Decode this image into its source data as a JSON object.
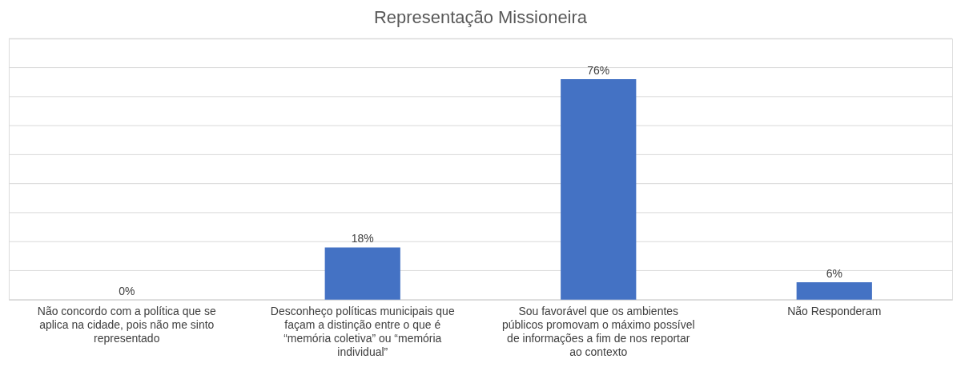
{
  "chart_data": {
    "type": "bar",
    "title": "Representação Missioneira",
    "categories": [
      "Não concordo com a política que se aplica na cidade, pois não me sinto representado",
      "Desconheço políticas municipais que façam a distinção entre o que é “memória coletiva” ou “memória individual”",
      "Sou favorável que os ambientes públicos promovam o máximo possível de informações a fim de nos reportar ao contexto",
      "Não Responderam"
    ],
    "values": [
      0,
      18,
      76,
      6
    ],
    "value_labels": [
      "0%",
      "18%",
      "76%",
      "6%"
    ],
    "color": "#4472c4",
    "ylim": [
      0,
      90
    ],
    "yticks": [
      {
        "value": 0,
        "label": null
      },
      {
        "value": 10,
        "label": null
      },
      {
        "value": 20,
        "label": null
      },
      {
        "value": 30,
        "label": null
      },
      {
        "value": 40,
        "label": null
      },
      {
        "value": 50,
        "label": null
      },
      {
        "value": 60,
        "label": null
      },
      {
        "value": 70,
        "label": null
      },
      {
        "value": 80,
        "label": null
      },
      {
        "value": 90,
        "label": null
      }
    ],
    "tick_labels": "x",
    "grid": "y"
  }
}
